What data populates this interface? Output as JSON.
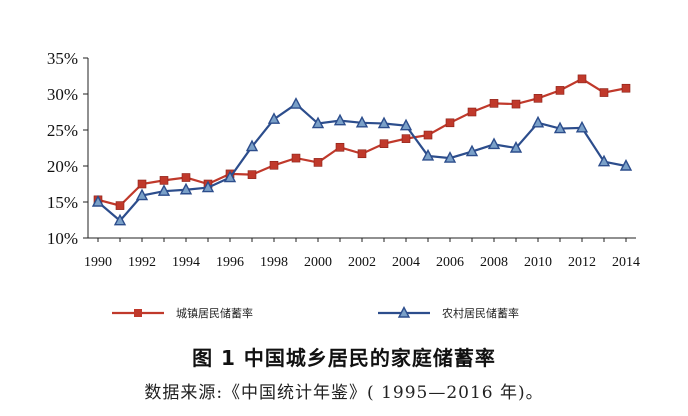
{
  "chart_data": {
    "type": "line",
    "x": [
      1990,
      1991,
      1992,
      1993,
      1994,
      1995,
      1996,
      1997,
      1998,
      1999,
      2000,
      2001,
      2002,
      2003,
      2004,
      2005,
      2006,
      2007,
      2008,
      2009,
      2010,
      2011,
      2012,
      2013,
      2014
    ],
    "x_tick_labels": [
      "1990",
      "1992",
      "1994",
      "1996",
      "1998",
      "2000",
      "2002",
      "2004",
      "2006",
      "2008",
      "2010",
      "2012",
      "2014"
    ],
    "y_tick_labels": [
      "10%",
      "15%",
      "20%",
      "25%",
      "30%",
      "35%"
    ],
    "ylim": [
      10,
      35
    ],
    "y_unit": "%",
    "grid": false,
    "legend_position": "bottom",
    "series": [
      {
        "name": "城镇居民储蓄率",
        "color": "#c0392b",
        "marker": "square",
        "values": [
          15.3,
          14.5,
          17.5,
          18.0,
          18.4,
          17.5,
          18.9,
          18.8,
          20.1,
          21.1,
          20.5,
          22.6,
          21.7,
          23.1,
          23.8,
          24.3,
          26.0,
          27.5,
          28.7,
          28.6,
          29.4,
          30.5,
          32.1,
          30.2,
          30.8
        ]
      },
      {
        "name": "农村居民储蓄率",
        "color": "#2c4d8c",
        "marker": "triangle",
        "values": [
          15.0,
          12.4,
          15.9,
          16.5,
          16.7,
          17.0,
          18.4,
          22.7,
          26.5,
          28.6,
          25.9,
          26.3,
          26.0,
          25.9,
          25.6,
          21.4,
          21.1,
          22.0,
          23.0,
          22.5,
          26.0,
          25.2,
          25.3,
          20.6,
          20.0
        ]
      }
    ]
  },
  "caption": "图 1   中国城乡居民的家庭储蓄率",
  "source": "数据来源:《中国统计年鉴》( 1995—2016 年)。"
}
